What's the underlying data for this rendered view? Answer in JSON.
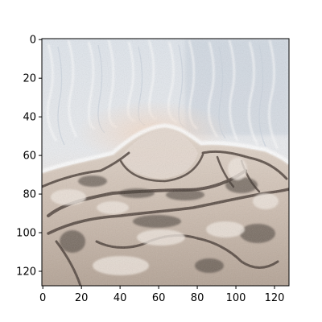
{
  "figure": {
    "image": {
      "description_name": "beach-sand-water-photo",
      "palette": {
        "water_light": "#e6eaf0",
        "water_blue": "#b7c3d1",
        "water_sheen": "#f4f2ef",
        "foam": "#ffffff",
        "sand_light": "#e8ddd4",
        "sand_warm": "#d9c8bb",
        "sand_mid": "#c3b3a6",
        "sand_dark": "#6e615a",
        "sand_shadow": "#3e342f",
        "peach_glow": "#f0d8c8"
      }
    },
    "axes": {
      "x_ticks": [
        "0",
        "20",
        "40",
        "60",
        "80",
        "100",
        "120"
      ],
      "x_tick_values": [
        0,
        20,
        40,
        60,
        80,
        100,
        120
      ],
      "y_ticks": [
        "0",
        "20",
        "40",
        "60",
        "80",
        "100",
        "120"
      ],
      "y_tick_values": [
        0,
        20,
        40,
        60,
        80,
        100,
        120
      ],
      "xlim": [
        -0.5,
        127.5
      ],
      "ylim": [
        127.5,
        -0.5
      ]
    }
  }
}
